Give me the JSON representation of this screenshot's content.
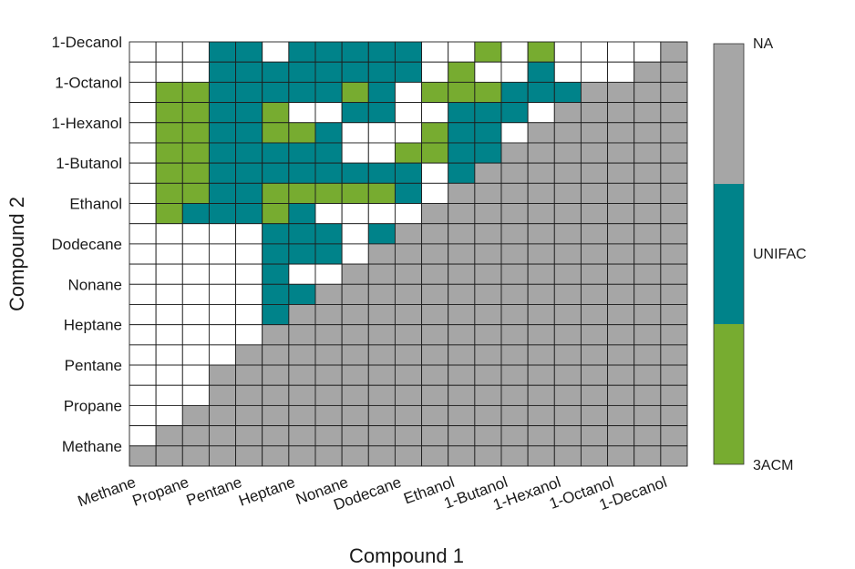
{
  "chart_data": {
    "type": "heatmap",
    "xlabel": "Compound 1",
    "ylabel": "Compound 2",
    "x_categories": [
      "Methane",
      "",
      "Propane",
      "",
      "Pentane",
      "",
      "Heptane",
      "",
      "Nonane",
      "",
      "Dodecane",
      "",
      "Ethanol",
      "",
      "1-Butanol",
      "",
      "1-Hexanol",
      "",
      "1-Octanol",
      "",
      "1-Decanol"
    ],
    "y_categories_top_to_bottom": [
      "1-Decanol",
      "",
      "1-Octanol",
      "",
      "1-Hexanol",
      "",
      "1-Butanol",
      "",
      "Ethanol",
      "",
      "Dodecane",
      "",
      "Nonane",
      "",
      "Heptane",
      "",
      "Pentane",
      "",
      "Propane",
      "",
      "Methane"
    ],
    "x_tick_labels": [
      "Methane",
      "Propane",
      "Pentane",
      "Heptane",
      "Nonane",
      "Dodecane",
      "Ethanol",
      "1-Butanol",
      "1-Hexanol",
      "1-Octanol",
      "1-Decanol"
    ],
    "y_tick_labels": [
      "1-Decanol",
      "1-Octanol",
      "1-Hexanol",
      "1-Butanol",
      "Ethanol",
      "Dodecane",
      "Nonane",
      "Heptane",
      "Pentane",
      "Propane",
      "Methane"
    ],
    "legend": {
      "placement": "right colorbar",
      "entries": [
        {
          "code": "A",
          "label": "NA",
          "color": "#a6a6a6"
        },
        {
          "code": "U",
          "label": "UNIFAC",
          "color": "#00838a"
        },
        {
          "code": "G",
          "label": "3ACM",
          "color": "#77ac30"
        },
        {
          "code": "W",
          "label": "",
          "color": "#ffffff"
        }
      ]
    },
    "grid_rows_top_to_bottom": [
      "WWWUUWUUUUUWWGWGWWWWA",
      "WWWUUUUUUUUWGWWUWWWAA",
      "WGGUUUUUGUWGGGUUUAAAA",
      "WGGUUGWWUUWWUUUWAAAAA",
      "WGGUUGGUWWWGUUWAAAAAA",
      "WGGUUUUUWWGGUUAAAAAAA",
      "WGGUUUUUUUUWUAAAAAAAA",
      "WGGUUGGGGGUWAAAAAAAAA",
      "WGUUUGUWWWWAAAAAAAAAA",
      "WWWWWUUUWUAAAAAAAAAAA",
      "WWWWWUUUWAAAAAAAAAAAA",
      "WWWWWUWWAAAAAAAAAAAAA",
      "WWWWWUUAAAAAAAAAAAAAA",
      "WWWWWUAAAAAAAAAAAAAAA",
      "WWWWWAAAAAAAAAAAAAAAA",
      "WWWWAAAAAAAAAAAAAAAAA",
      "WWWAAAAAAAAAAAAAAAAAA",
      "WWWAAAAAAAAAAAAAAAAAA",
      "WWAAAAAAAAAAAAAAAAAAA",
      "WAAAAAAAAAAAAAAAAAAAA",
      "AAAAAAAAAAAAAAAAAAAAA"
    ]
  }
}
